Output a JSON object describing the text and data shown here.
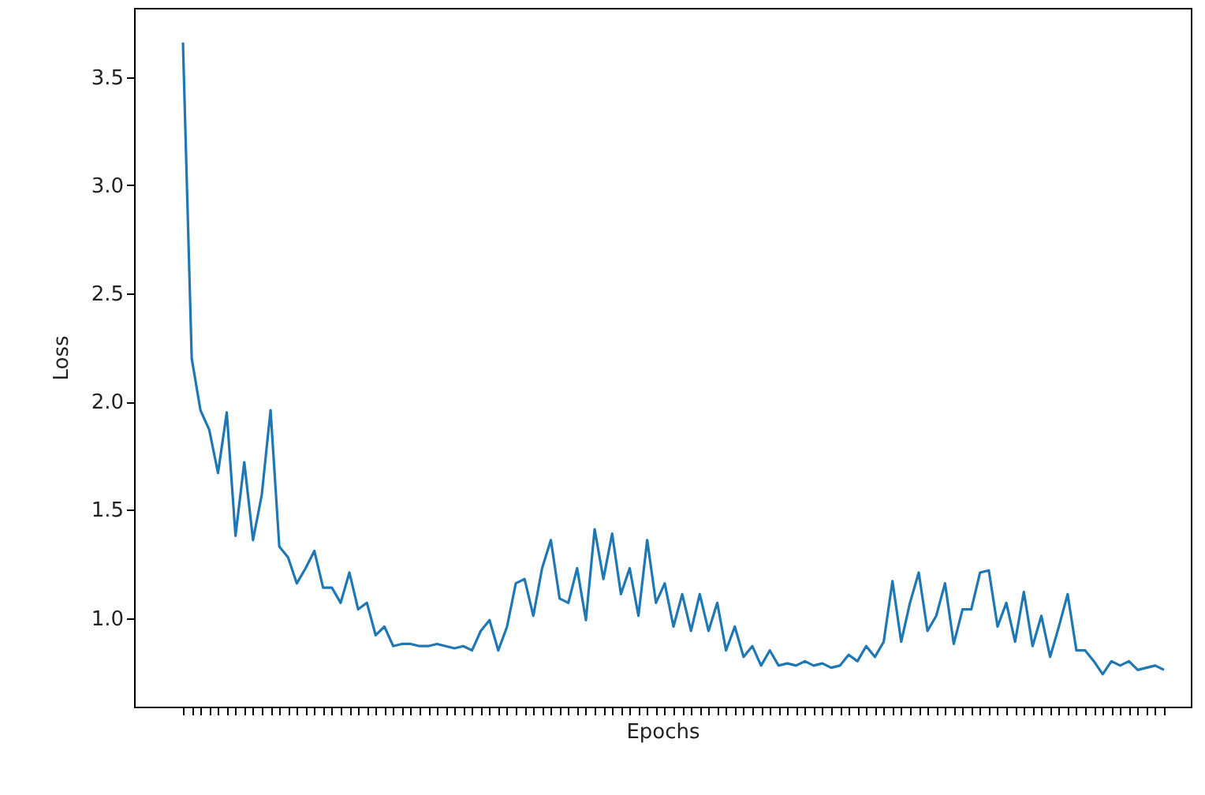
{
  "chart_data": {
    "type": "line",
    "xlabel": "Epochs",
    "ylabel": "Loss",
    "categories": [
      null,
      null,
      null,
      null,
      null,
      null,
      null,
      null,
      null,
      null,
      null,
      null,
      null,
      null,
      null,
      null,
      null,
      null,
      null,
      null,
      null,
      null,
      null,
      null,
      null,
      null,
      null,
      null,
      null,
      null,
      null,
      null,
      null,
      null,
      null,
      null,
      null,
      null,
      null,
      null,
      null,
      null,
      null,
      null,
      null,
      null,
      null,
      null,
      null,
      null,
      null,
      null,
      null,
      null,
      null,
      null,
      null,
      null,
      null,
      null,
      null,
      null,
      null,
      null,
      null,
      null,
      null,
      null,
      null,
      null,
      null,
      null,
      null,
      null,
      null,
      null,
      null,
      null,
      null,
      null,
      null,
      null,
      null,
      null,
      null,
      null,
      null,
      null,
      null,
      null,
      null,
      null,
      null,
      null,
      null,
      null,
      null,
      null,
      null,
      null,
      null,
      null,
      null,
      null,
      null,
      null,
      null,
      null,
      null,
      null,
      null,
      null,
      null
    ],
    "series": [
      {
        "color": "#1f77b4",
        "values": [
          3.66,
          2.2,
          1.96,
          1.87,
          1.67,
          1.95,
          1.38,
          1.72,
          1.36,
          1.57,
          1.96,
          1.33,
          1.28,
          1.16,
          1.23,
          1.31,
          1.14,
          1.14,
          1.07,
          1.21,
          1.04,
          1.07,
          0.92,
          0.96,
          0.87,
          0.88,
          0.88,
          0.87,
          0.87,
          0.88,
          0.87,
          0.86,
          0.87,
          0.85,
          0.94,
          0.99,
          0.85,
          0.96,
          1.16,
          1.18,
          1.01,
          1.23,
          1.36,
          1.09,
          1.07,
          1.23,
          0.99,
          1.41,
          1.18,
          1.39,
          1.11,
          1.23,
          1.01,
          1.36,
          1.07,
          1.16,
          0.96,
          1.11,
          0.94,
          1.11,
          0.94,
          1.07,
          0.85,
          0.96,
          0.82,
          0.87,
          0.78,
          0.85,
          0.78,
          0.79,
          0.78,
          0.8,
          0.78,
          0.79,
          0.77,
          0.78,
          0.83,
          0.8,
          0.87,
          0.82,
          0.89,
          1.17,
          0.89,
          1.07,
          1.21,
          0.94,
          1.01,
          1.16,
          0.88,
          1.04,
          1.04,
          1.21,
          1.22,
          0.96,
          1.07,
          0.89,
          1.12,
          0.87,
          1.01,
          0.82,
          0.96,
          1.11,
          0.85,
          0.85,
          0.8,
          0.74,
          0.8,
          0.78,
          0.8,
          0.76,
          0.77,
          0.78,
          0.76
        ]
      }
    ],
    "ylim": [
      0.59,
      3.82
    ],
    "yticks": [
      {
        "value": 1,
        "label": "1.0"
      },
      1.5,
      {
        "value": 2,
        "label": "2.0"
      },
      2.5,
      {
        "value": 3,
        "label": "3.0"
      },
      3.5
    ],
    "tick_labels": "y",
    "grid": false,
    "marker": "none",
    "line_style": "solid"
  }
}
